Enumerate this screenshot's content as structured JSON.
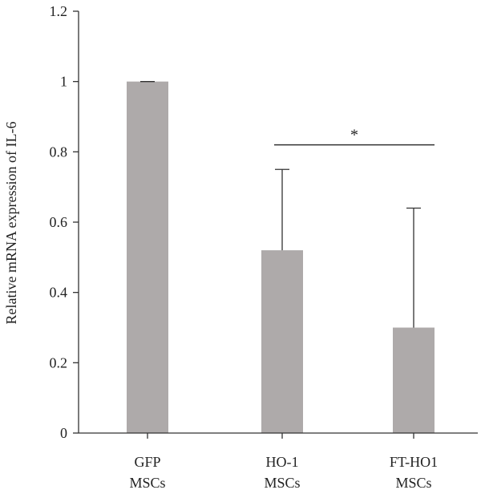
{
  "chart_data": {
    "type": "bar",
    "categories": [
      [
        "GFP",
        "MSCs"
      ],
      [
        "HO-1",
        "MSCs"
      ],
      [
        "FT-HO1",
        "MSCs"
      ]
    ],
    "values": [
      1.0,
      0.52,
      0.3
    ],
    "error_upper": [
      1.0,
      0.75,
      0.64
    ],
    "ylabel": "Relative mRNA expression of IL-6",
    "ylim": [
      0,
      1.2
    ],
    "yticks": [
      0,
      0.2,
      0.4,
      0.6,
      0.8,
      1,
      1.2
    ],
    "ytick_labels": [
      "0",
      "0.2",
      "0.4",
      "0.6",
      "0.8",
      "1",
      "1.2"
    ],
    "significance": {
      "from": 1,
      "to": 2,
      "y": 0.82,
      "label": "*"
    },
    "bar_color": "#aeaaaa",
    "grid": false
  }
}
